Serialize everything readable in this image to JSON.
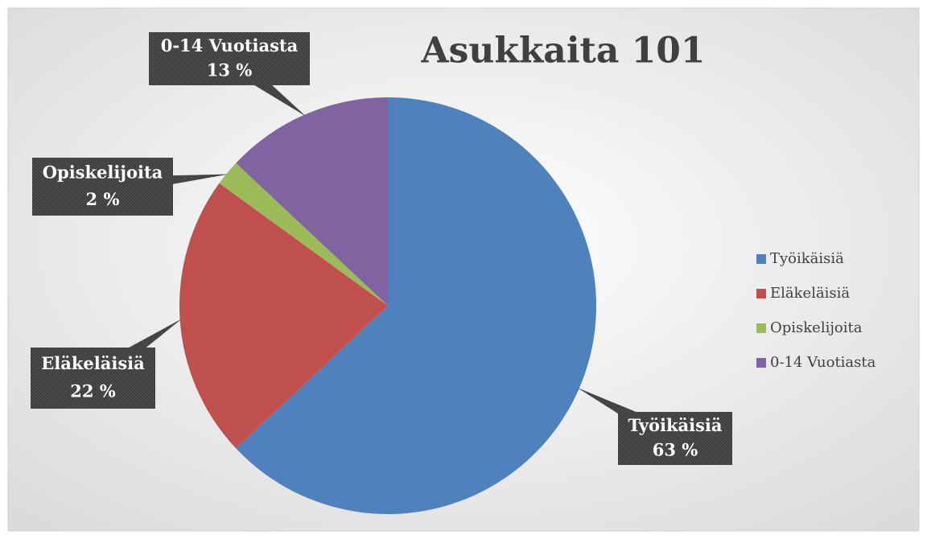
{
  "chart_data": {
    "type": "pie",
    "title": "Asukkaita 101",
    "categories": [
      "Työikäisiä",
      "Eläkeläisiä",
      "Opiskelijoita",
      "0-14 Vuotiasta"
    ],
    "values": [
      63,
      22,
      2,
      13
    ],
    "value_labels": [
      "63 %",
      "22 %",
      "2 %",
      "13 %"
    ],
    "colors": [
      "#4f81bd",
      "#c0504d",
      "#9bbb59",
      "#8064a2"
    ],
    "legend": "right"
  }
}
